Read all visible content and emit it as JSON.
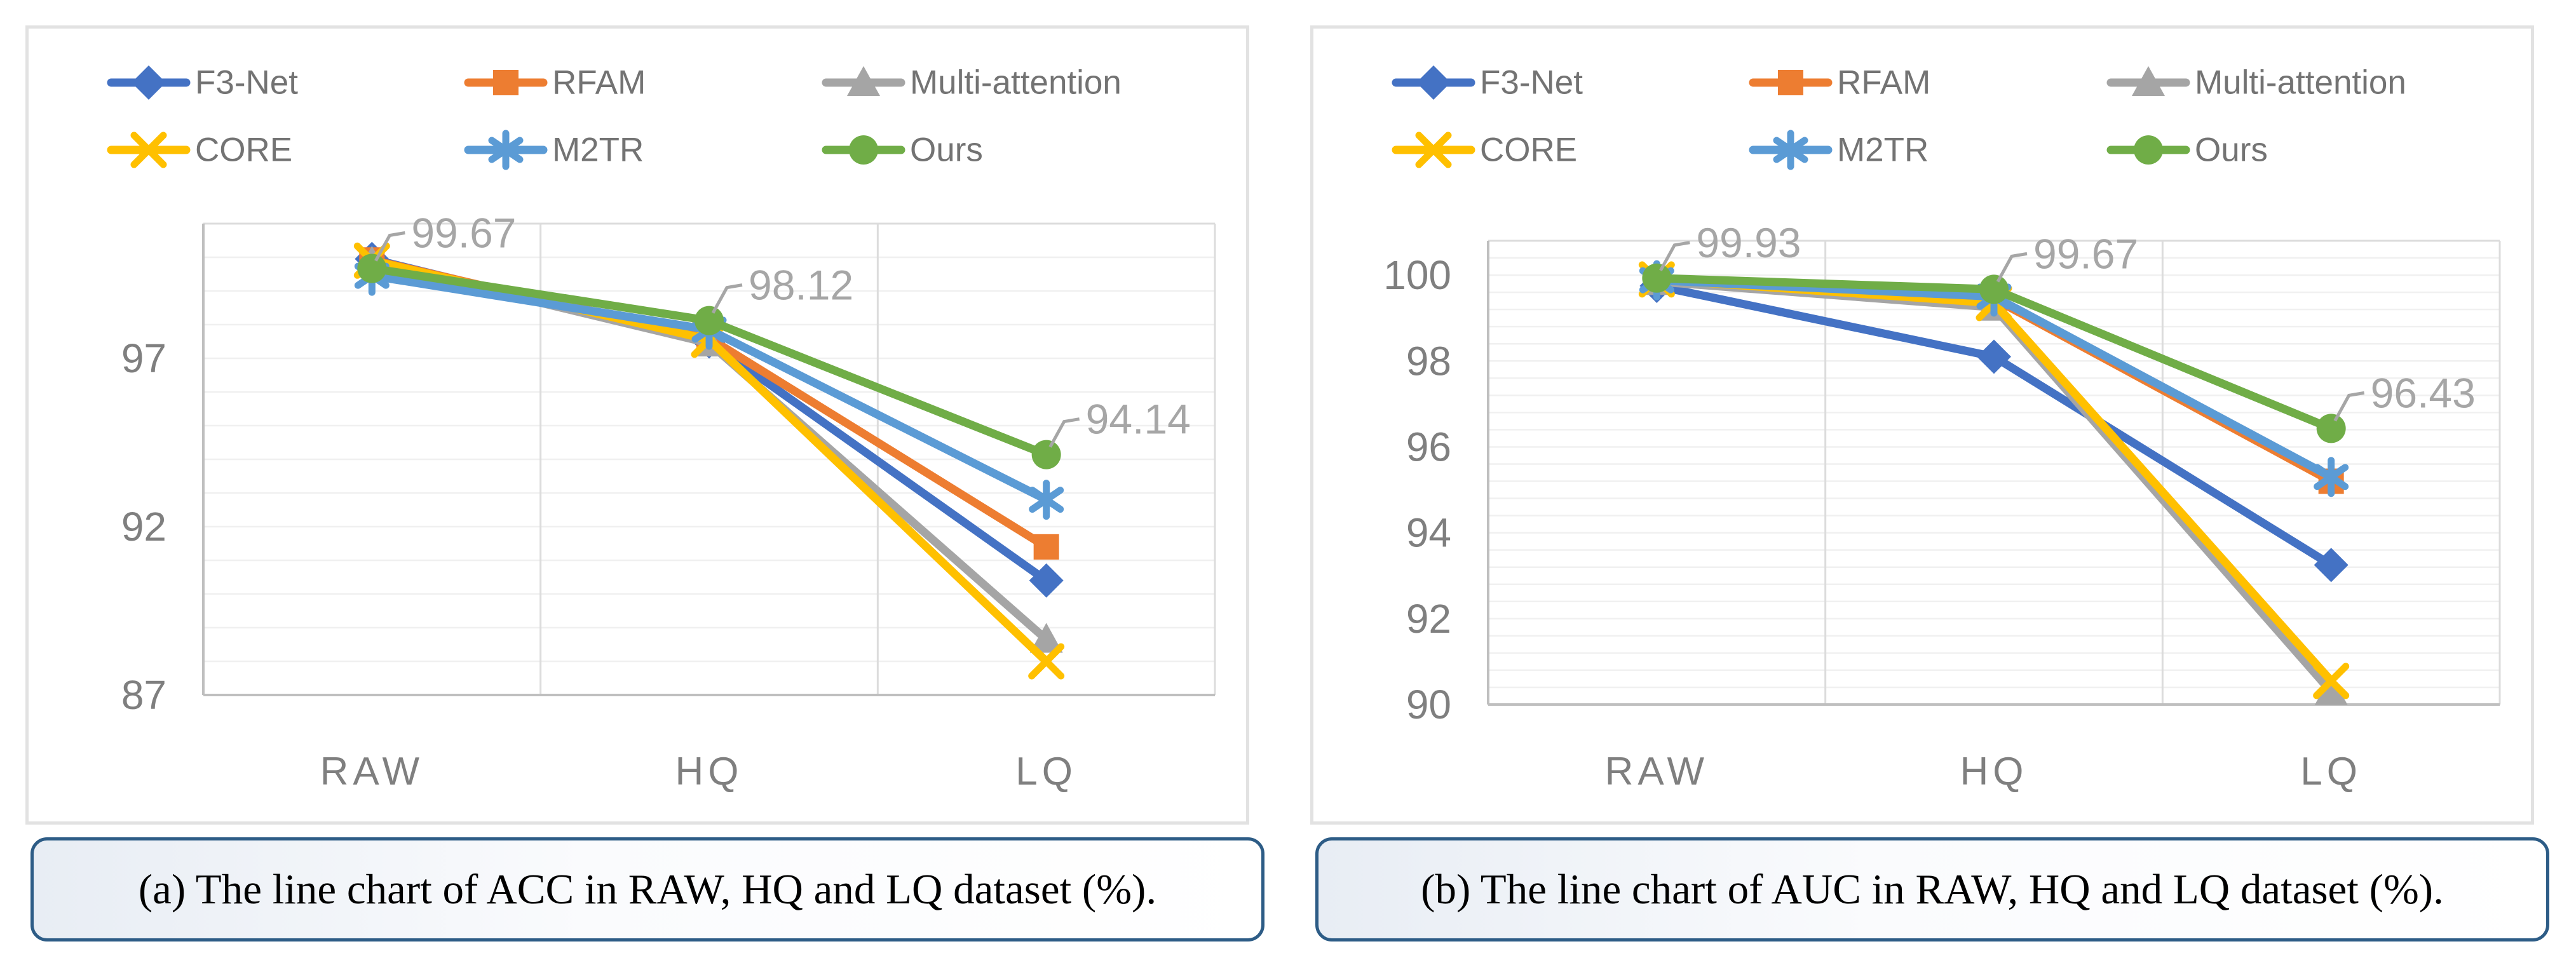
{
  "captions": {
    "a": "(a) The line chart of ACC in RAW, HQ and LQ dataset (%).",
    "b": "(b) The line chart of AUC in RAW, HQ and LQ dataset (%)."
  },
  "colors": {
    "f3net": "#4472C4",
    "rfam": "#ED7D31",
    "multi_attention": "#A5A5A5",
    "core": "#FFC000",
    "m2tr": "#5B9BD5",
    "ours": "#70AD47",
    "grid_minor": "#f0f0f0",
    "grid_vertical": "#dcdcdc",
    "axis_line": "#bfbfbf",
    "axis_label": "#7f7f7f",
    "legend_text": "#737373",
    "annotation": "#a6a6a6",
    "caption_border": "#2d5c86"
  },
  "chart_data": [
    {
      "type": "line",
      "title": "",
      "xlabel": "",
      "ylabel": "",
      "categories": [
        "RAW",
        "HQ",
        "LQ"
      ],
      "series": [
        {
          "name": "F3-Net",
          "color": "#4472C4",
          "marker": "diamond",
          "values": [
            99.95,
            97.5,
            90.4
          ]
        },
        {
          "name": "RFAM",
          "color": "#ED7D31",
          "marker": "square",
          "values": [
            99.92,
            97.6,
            91.4
          ]
        },
        {
          "name": "Multi-attention",
          "color": "#A5A5A5",
          "marker": "triangle",
          "values": [
            99.85,
            97.45,
            88.65
          ]
        },
        {
          "name": "CORE",
          "color": "#FFC000",
          "marker": "x",
          "values": [
            99.9,
            97.55,
            88.0
          ]
        },
        {
          "name": "M2TR",
          "color": "#5B9BD5",
          "marker": "asterisk",
          "values": [
            99.45,
            97.85,
            92.8
          ]
        },
        {
          "name": "Ours",
          "color": "#70AD47",
          "marker": "circle",
          "values": [
            99.67,
            98.12,
            94.14
          ]
        }
      ],
      "annotations": [
        {
          "series": "Ours",
          "category": "RAW",
          "text": "99.67"
        },
        {
          "series": "Ours",
          "category": "HQ",
          "text": "98.12"
        },
        {
          "series": "Ours",
          "category": "LQ",
          "text": "94.14"
        }
      ],
      "ylim": [
        87,
        101
      ],
      "minor_unit": 1,
      "tick_labels": [
        "87",
        "92",
        "97"
      ],
      "tick_values": [
        87,
        92,
        97
      ],
      "legend_position": "top",
      "grid": true
    },
    {
      "type": "line",
      "title": "",
      "xlabel": "",
      "ylabel": "",
      "categories": [
        "RAW",
        "HQ",
        "LQ"
      ],
      "series": [
        {
          "name": "F3-Net",
          "color": "#4472C4",
          "marker": "diamond",
          "values": [
            99.75,
            98.1,
            93.25
          ]
        },
        {
          "name": "RFAM",
          "color": "#ED7D31",
          "marker": "square",
          "values": [
            99.88,
            99.45,
            95.2
          ]
        },
        {
          "name": "Multi-attention",
          "color": "#A5A5A5",
          "marker": "triangle",
          "values": [
            99.85,
            99.25,
            90.3
          ]
        },
        {
          "name": "CORE",
          "color": "#FFC000",
          "marker": "x",
          "values": [
            99.9,
            99.35,
            90.55
          ]
        },
        {
          "name": "M2TR",
          "color": "#5B9BD5",
          "marker": "asterisk",
          "values": [
            99.88,
            99.5,
            95.3
          ]
        },
        {
          "name": "Ours",
          "color": "#70AD47",
          "marker": "circle",
          "values": [
            99.93,
            99.67,
            96.43
          ]
        }
      ],
      "annotations": [
        {
          "series": "Ours",
          "category": "RAW",
          "text": "99.93"
        },
        {
          "series": "Ours",
          "category": "HQ",
          "text": "99.67"
        },
        {
          "series": "Ours",
          "category": "LQ",
          "text": "96.43"
        }
      ],
      "ylim": [
        90,
        100.8
      ],
      "minor_unit": 0.4,
      "tick_labels": [
        "90",
        "92",
        "94",
        "96",
        "98",
        "100"
      ],
      "tick_values": [
        90,
        92,
        94,
        96,
        98,
        100
      ],
      "legend_position": "top",
      "grid": true
    }
  ]
}
